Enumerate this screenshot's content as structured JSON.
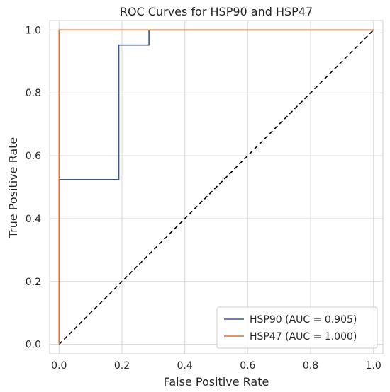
{
  "chart_data": {
    "type": "line",
    "title": "ROC Curves for HSP90 and HSP47",
    "xlabel": "False Positive Rate",
    "ylabel": "True Positive Rate",
    "xlim": [
      -0.03,
      1.03
    ],
    "ylim": [
      -0.03,
      1.03
    ],
    "xticks": [
      0.0,
      0.2,
      0.4,
      0.6,
      0.8,
      1.0
    ],
    "yticks": [
      0.0,
      0.2,
      0.4,
      0.6,
      0.8,
      1.0
    ],
    "xtick_labels": [
      "0.0",
      "0.2",
      "0.4",
      "0.6",
      "0.8",
      "1.0"
    ],
    "ytick_labels": [
      "0.0",
      "0.2",
      "0.4",
      "0.6",
      "0.8",
      "1.0"
    ],
    "grid": true,
    "legend_position": "bottom-right",
    "series": [
      {
        "name": "HSP90 (AUC = 0.905)",
        "color": "#3b5591",
        "x": [
          0.0,
          0.0,
          0.0,
          0.19,
          0.19,
          0.286,
          0.286,
          1.0
        ],
        "y": [
          0.0,
          0.0,
          0.524,
          0.524,
          0.952,
          0.952,
          1.0,
          1.0
        ]
      },
      {
        "name": "HSP47 (AUC = 1.000)",
        "color": "#d3763e",
        "x": [
          0.0,
          0.0,
          1.0
        ],
        "y": [
          0.0,
          1.0,
          1.0
        ]
      }
    ],
    "reference_line": {
      "color": "#000000",
      "style": "dashed",
      "x": [
        0.0,
        1.0
      ],
      "y": [
        0.0,
        1.0
      ]
    }
  }
}
